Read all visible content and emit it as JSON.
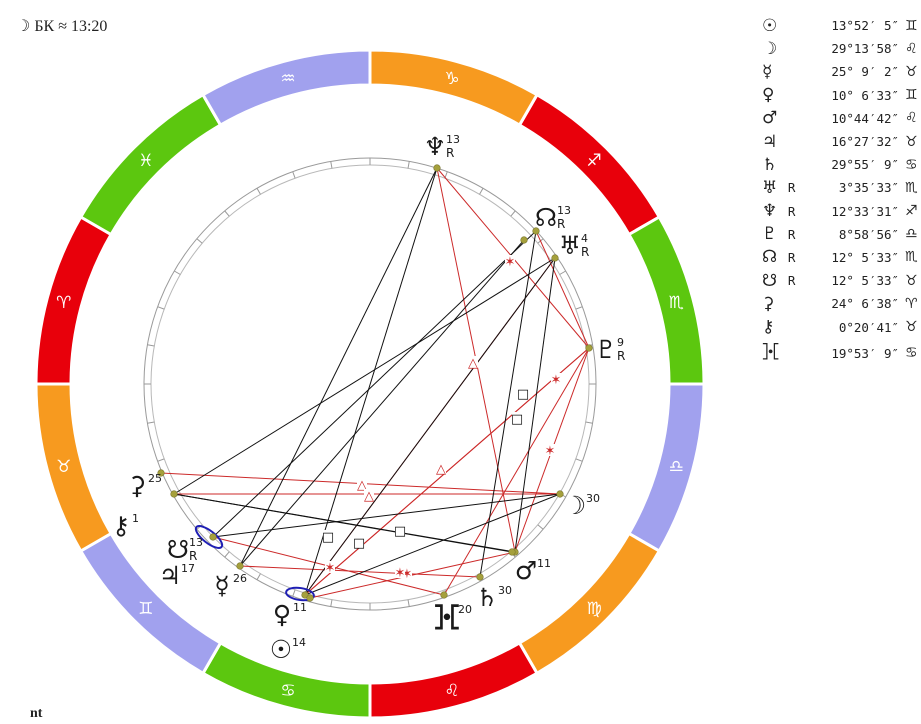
{
  "header": {
    "moon_glyph": "☽",
    "text": "БК ≈ 13:20"
  },
  "footer": {
    "text": "nt"
  },
  "colors": {
    "fire": "#e8000b",
    "earth": "#f79a1f",
    "air": "#a1a1ee",
    "water": "#5cc70f",
    "harmonious": "#cc2a2a",
    "tense": "#111111",
    "planet_dot": "#a5a03c",
    "orb": "#1f1fb4"
  },
  "zodiac_ring": [
    {
      "sign": "sagittarius",
      "glyph": "♐",
      "color": "#e8000b"
    },
    {
      "sign": "scorpio",
      "glyph": "♏",
      "color": "#5cc70f"
    },
    {
      "sign": "libra",
      "glyph": "♎",
      "color": "#a1a1ee"
    },
    {
      "sign": "virgo",
      "glyph": "♍",
      "color": "#f79a1f"
    },
    {
      "sign": "leo",
      "glyph": "♌",
      "color": "#e8000b"
    },
    {
      "sign": "cancer",
      "glyph": "♋",
      "color": "#5cc70f"
    },
    {
      "sign": "gemini",
      "glyph": "♊",
      "color": "#a1a1ee"
    },
    {
      "sign": "taurus",
      "glyph": "♉",
      "color": "#f79a1f"
    },
    {
      "sign": "aries",
      "glyph": "♈",
      "color": "#e8000b"
    },
    {
      "sign": "pisces",
      "glyph": "♓",
      "color": "#5cc70f"
    },
    {
      "sign": "aquarius",
      "glyph": "♒",
      "color": "#a1a1ee"
    },
    {
      "sign": "capricorn",
      "glyph": "♑",
      "color": "#f79a1f"
    }
  ],
  "chart_points": [
    {
      "id": "neptune",
      "glyph": "♆",
      "degree": "13",
      "retro": "R"
    },
    {
      "id": "north-node",
      "glyph": "☊",
      "degree": "13",
      "retro": "R"
    },
    {
      "id": "uranus",
      "glyph": "♅",
      "degree": "4",
      "retro": "R"
    },
    {
      "id": "pluto",
      "glyph": "♇",
      "degree": "9",
      "retro": "R"
    },
    {
      "id": "moon",
      "glyph": "☽",
      "degree": "30",
      "retro": ""
    },
    {
      "id": "mars",
      "glyph": "♂",
      "degree": "11",
      "retro": ""
    },
    {
      "id": "saturn",
      "glyph": "♄",
      "degree": "30",
      "retro": ""
    },
    {
      "id": "proserpina",
      "glyph": "⯘",
      "degree": "20",
      "retro": ""
    },
    {
      "id": "venus",
      "glyph": "♀",
      "degree": "11",
      "retro": ""
    },
    {
      "id": "sun",
      "glyph": "☉",
      "degree": "14",
      "retro": ""
    },
    {
      "id": "mercury",
      "glyph": "☿",
      "degree": "26",
      "retro": ""
    },
    {
      "id": "jupiter",
      "glyph": "♃",
      "degree": "17",
      "retro": ""
    },
    {
      "id": "south-node",
      "glyph": "☋",
      "degree": "13",
      "retro": "R"
    },
    {
      "id": "chiron",
      "glyph": "⚷",
      "degree": "1",
      "retro": ""
    },
    {
      "id": "ceres",
      "glyph": "⚳",
      "degree": "25",
      "retro": ""
    }
  ],
  "aspect_symbols": {
    "trine": "△",
    "square": "□",
    "sextile": "✶"
  },
  "planet_table": [
    {
      "id": "sun",
      "glyph": "☉",
      "retro": "",
      "position": "13°52′ 5″",
      "sign_glyph": "♊"
    },
    {
      "id": "moon",
      "glyph": "☽",
      "retro": "",
      "position": "29°13′58″",
      "sign_glyph": "♌"
    },
    {
      "id": "mercury",
      "glyph": "☿",
      "retro": "",
      "position": "25° 9′ 2″",
      "sign_glyph": "♉"
    },
    {
      "id": "venus",
      "glyph": "♀",
      "retro": "",
      "position": "10° 6′33″",
      "sign_glyph": "♊"
    },
    {
      "id": "mars",
      "glyph": "♂",
      "retro": "",
      "position": "10°44′42″",
      "sign_glyph": "♌"
    },
    {
      "id": "jupiter",
      "glyph": "♃",
      "retro": "",
      "position": "16°27′32″",
      "sign_glyph": "♉"
    },
    {
      "id": "saturn",
      "glyph": "♄",
      "retro": "",
      "position": "29°55′ 9″",
      "sign_glyph": "♋"
    },
    {
      "id": "uranus",
      "glyph": "♅",
      "retro": "R",
      "position": "3°35′33″",
      "sign_glyph": "♏"
    },
    {
      "id": "neptune",
      "glyph": "♆",
      "retro": "R",
      "position": "12°33′31″",
      "sign_glyph": "♐"
    },
    {
      "id": "pluto",
      "glyph": "♇",
      "retro": "R",
      "position": "8°58′56″",
      "sign_glyph": "♎"
    },
    {
      "id": "north-node",
      "glyph": "☊",
      "retro": "R",
      "position": "12° 5′33″",
      "sign_glyph": "♏"
    },
    {
      "id": "south-node",
      "glyph": "☋",
      "retro": "R",
      "position": "12° 5′33″",
      "sign_glyph": "♉"
    },
    {
      "id": "ceres",
      "glyph": "⚳",
      "retro": "",
      "position": "24° 6′38″",
      "sign_glyph": "♈"
    },
    {
      "id": "chiron",
      "glyph": "⚷",
      "retro": "",
      "position": "0°20′41″",
      "sign_glyph": "♉"
    },
    {
      "id": "proserpina",
      "glyph": "⯘",
      "retro": "",
      "position": "19°53′ 9″",
      "sign_glyph": "♋"
    }
  ]
}
